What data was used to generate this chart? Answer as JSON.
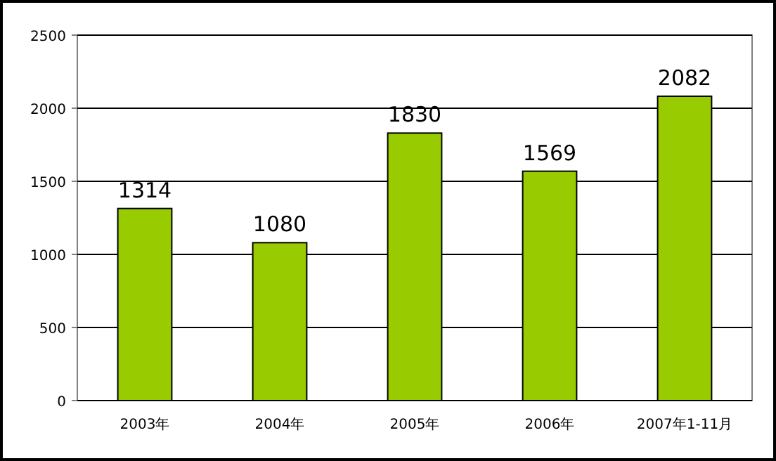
{
  "chart_data": {
    "type": "bar",
    "categories": [
      "2003年",
      "2004年",
      "2005年",
      "2006年",
      "2007年1-11月"
    ],
    "values": [
      1314,
      1080,
      1830,
      1569,
      2082
    ],
    "color": "#99cc00",
    "ylim": [
      0,
      2500
    ],
    "yticks": [
      0,
      500,
      1000,
      1500,
      2000,
      2500
    ],
    "grid": "y",
    "data_labels": true
  }
}
